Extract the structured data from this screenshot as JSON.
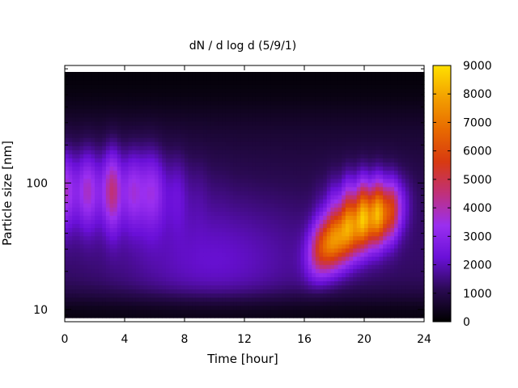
{
  "chart_data": {
    "type": "heatmap",
    "title": "dN / d log d (5/9/1)",
    "xlabel": "Time [hour]",
    "ylabel": "Particle size [nm]",
    "xlim": [
      0,
      24
    ],
    "ylim": [
      8,
      850
    ],
    "yscale": "log",
    "x_ticks": [
      0,
      4,
      8,
      12,
      16,
      20,
      24
    ],
    "x_tick_labels": [
      "0",
      "4",
      "8",
      "12",
      "16",
      "20",
      "24"
    ],
    "y_ticks": [
      10,
      100
    ],
    "y_tick_labels": [
      "10",
      "100"
    ],
    "colorbar": {
      "range": [
        0,
        9000
      ],
      "ticks": [
        0,
        1000,
        2000,
        3000,
        4000,
        5000,
        6000,
        7000,
        8000,
        9000
      ],
      "tick_labels": [
        "0",
        "1000",
        "2000",
        "3000",
        "4000",
        "5000",
        "6000",
        "7000",
        "8000",
        "9000"
      ],
      "colormap": [
        "#000000",
        "#2a0a52",
        "#6a10d8",
        "#9a2ff0",
        "#c0307a",
        "#d83a10",
        "#e86a00",
        "#f3a000",
        "#ffe000"
      ]
    },
    "grid": false,
    "legend": "none",
    "features": [
      {
        "time_range": [
          0,
          10
        ],
        "diameter_peak": 90,
        "value_peak": 4000
      },
      {
        "time_range": [
          16.5,
          22
        ],
        "diameter_peak": 35,
        "value_peak": 7500
      },
      {
        "time_range": [
          18.5,
          22
        ],
        "diameter_peak": 65,
        "value_peak": 6500
      }
    ]
  }
}
